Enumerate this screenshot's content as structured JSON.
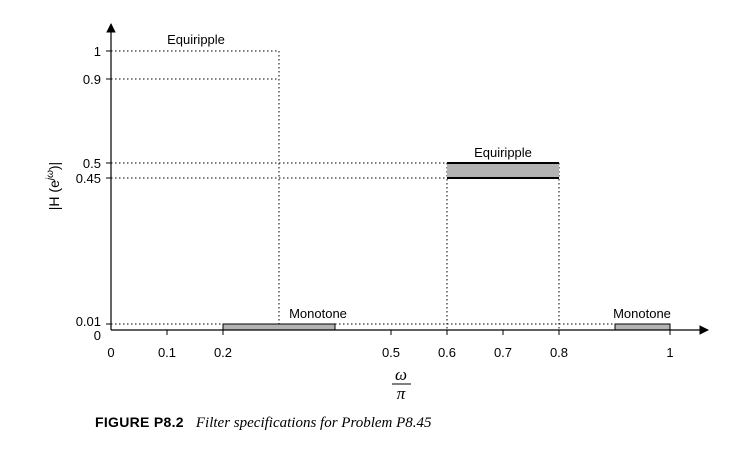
{
  "figure": {
    "y_tick_labels": [
      "1",
      "0.9",
      "0.5",
      "0.45",
      "0.01",
      "0"
    ],
    "x_tick_labels": [
      "0",
      "0.1",
      "0.2",
      "0.5",
      "0.6",
      "0.7",
      "0.8",
      "1"
    ],
    "ylabel": "|H (e",
    "ylabel_sup": "jω",
    "ylabel_close": ")|",
    "xlabel_num": "ω",
    "xlabel_den": "π",
    "regions": [
      {
        "label": "Equiripple",
        "band": "passband",
        "w_start": 0,
        "w_end": 0.3,
        "mag_low": 0.9,
        "mag_high": 1
      },
      {
        "label": "Monotone",
        "band": "stopband",
        "w_start": 0.2,
        "w_end": 0.4,
        "mag_low": 0,
        "mag_high": 0.01
      },
      {
        "label": "Equiripple",
        "band": "passband",
        "w_start": 0.6,
        "w_end": 0.8,
        "mag_low": 0.45,
        "mag_high": 0.5
      },
      {
        "label": "Monotone",
        "band": "stopband",
        "w_start": 0.9,
        "w_end": 1.0,
        "mag_low": 0,
        "mag_high": 0.01
      }
    ],
    "colors": {
      "band_fill": "#b3b3b3",
      "line": "#000000"
    }
  },
  "caption": {
    "number": "FIGURE P8.2",
    "text": "Filter specifications for Problem P8.45"
  }
}
